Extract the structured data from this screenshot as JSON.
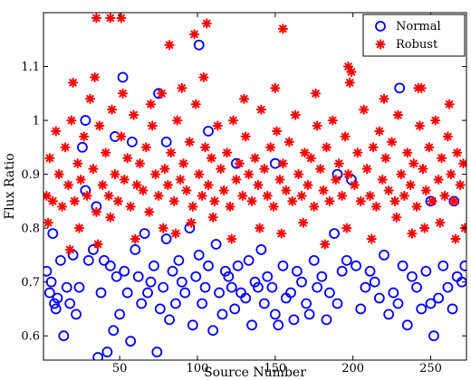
{
  "chart_data": {
    "type": "scatter",
    "title": "",
    "xlabel": "Source Number",
    "ylabel": "Flux Ratio",
    "xlim": [
      1,
      273
    ],
    "ylim": [
      0.555,
      1.2
    ],
    "xticks": [
      50,
      100,
      150,
      200,
      250
    ],
    "yticks": [
      0.6,
      0.7,
      0.8,
      0.9,
      1.0,
      1.1
    ],
    "ytick_labels": [
      "0.6",
      "0.7",
      "0.8",
      "0.9",
      "1",
      "1.1"
    ],
    "grid": false,
    "legend_position": "top-right",
    "series": [
      {
        "name": "Normal",
        "marker": "circle",
        "color": "#0000ff",
        "x": [
          3,
          5,
          6,
          7,
          8,
          9,
          10,
          12,
          14,
          16,
          18,
          20,
          22,
          24,
          26,
          28,
          30,
          33,
          35,
          36,
          38,
          40,
          42,
          44,
          46,
          48,
          50,
          53,
          55,
          57,
          60,
          62,
          64,
          66,
          68,
          70,
          72,
          74,
          76,
          78,
          80,
          82,
          84,
          86,
          88,
          90,
          92,
          95,
          97,
          99,
          101,
          103,
          105,
          107,
          110,
          112,
          114,
          116,
          118,
          120,
          122,
          124,
          126,
          128,
          131,
          133,
          135,
          137,
          139,
          141,
          143,
          145,
          148,
          150,
          152,
          155,
          157,
          160,
          162,
          164,
          167,
          170,
          172,
          175,
          177,
          180,
          183,
          185,
          188,
          190,
          193,
          196,
          199,
          202,
          205,
          208,
          211,
          214,
          217,
          220,
          223,
          226,
          229,
          232,
          235,
          238,
          241,
          244,
          247,
          250,
          252,
          255,
          258,
          261,
          264,
          267,
          270,
          272,
          28,
          47,
          52,
          58,
          75,
          80,
          101,
          107,
          125,
          150,
          190,
          230,
          250,
          265
        ],
        "y": [
          0.72,
          0.68,
          0.7,
          0.79,
          0.66,
          0.65,
          0.67,
          0.74,
          0.6,
          0.69,
          0.66,
          0.75,
          0.64,
          0.69,
          0.95,
          0.87,
          0.74,
          0.76,
          0.84,
          0.56,
          0.68,
          0.74,
          0.57,
          0.73,
          0.61,
          0.71,
          0.64,
          0.72,
          0.68,
          0.59,
          0.76,
          0.71,
          0.66,
          0.79,
          0.68,
          0.7,
          0.73,
          0.57,
          0.65,
          0.69,
          0.78,
          0.63,
          0.72,
          0.66,
          0.74,
          0.7,
          0.68,
          0.8,
          0.62,
          0.71,
          0.75,
          0.66,
          0.69,
          0.73,
          0.61,
          0.77,
          0.68,
          0.64,
          0.72,
          0.71,
          0.69,
          0.65,
          0.73,
          0.68,
          0.67,
          0.74,
          0.62,
          0.7,
          0.69,
          0.76,
          0.66,
          0.71,
          0.69,
          0.64,
          0.62,
          0.73,
          0.67,
          0.68,
          0.63,
          0.72,
          0.7,
          0.66,
          0.64,
          0.74,
          0.69,
          0.71,
          0.63,
          0.68,
          0.79,
          0.66,
          0.72,
          0.74,
          0.89,
          0.73,
          0.65,
          0.69,
          0.72,
          0.7,
          0.67,
          0.75,
          0.64,
          0.68,
          0.66,
          0.73,
          0.62,
          0.71,
          0.69,
          0.65,
          0.72,
          0.66,
          0.6,
          0.67,
          0.73,
          0.69,
          0.65,
          0.71,
          0.7,
          0.73,
          1.0,
          0.97,
          1.08,
          0.96,
          1.05,
          0.96,
          1.14,
          0.98,
          0.92,
          0.92,
          0.9,
          1.06,
          0.85,
          0.85
        ]
      },
      {
        "name": "Robust",
        "marker": "asterisk",
        "color": "#ff0000",
        "x": [
          3,
          5,
          7,
          9,
          11,
          13,
          15,
          17,
          19,
          21,
          23,
          25,
          27,
          29,
          31,
          33,
          35,
          37,
          39,
          41,
          43,
          45,
          47,
          49,
          51,
          53,
          55,
          57,
          59,
          61,
          63,
          65,
          67,
          69,
          71,
          73,
          75,
          77,
          79,
          81,
          83,
          85,
          87,
          89,
          91,
          93,
          95,
          97,
          99,
          101,
          103,
          105,
          107,
          109,
          111,
          113,
          115,
          117,
          119,
          121,
          123,
          125,
          127,
          129,
          131,
          133,
          135,
          137,
          139,
          141,
          143,
          145,
          147,
          149,
          151,
          153,
          155,
          157,
          159,
          161,
          163,
          165,
          167,
          169,
          171,
          173,
          175,
          177,
          179,
          181,
          183,
          185,
          187,
          189,
          191,
          193,
          195,
          197,
          199,
          201,
          203,
          205,
          207,
          209,
          211,
          213,
          215,
          217,
          219,
          221,
          223,
          225,
          227,
          229,
          231,
          233,
          235,
          237,
          239,
          241,
          243,
          245,
          247,
          249,
          251,
          253,
          255,
          257,
          259,
          261,
          263,
          265,
          267,
          269,
          271,
          4,
          18,
          24,
          36,
          44,
          60,
          78,
          86,
          96,
          110,
          122,
          140,
          154,
          168,
          182,
          196,
          212,
          228,
          238,
          246,
          256,
          266,
          272,
          20,
          34,
          52,
          70,
          90,
          104,
          130,
          150,
          176,
          198,
          220,
          244,
          262,
          35,
          44,
          51,
          82,
          98,
          106,
          155,
          197,
          242
        ],
        "y": [
          0.86,
          0.93,
          0.85,
          0.98,
          0.9,
          0.84,
          0.95,
          0.88,
          1.0,
          0.85,
          0.92,
          0.89,
          0.97,
          0.86,
          1.04,
          0.91,
          0.83,
          0.99,
          0.88,
          0.94,
          0.86,
          1.02,
          0.9,
          0.85,
          0.97,
          0.89,
          0.93,
          0.84,
          1.01,
          0.88,
          0.92,
          0.87,
          0.95,
          0.83,
          0.99,
          0.9,
          0.86,
          1.05,
          0.91,
          0.88,
          0.94,
          0.85,
          1.0,
          0.89,
          0.92,
          0.87,
          0.96,
          0.84,
          1.03,
          0.9,
          0.86,
          0.95,
          0.88,
          0.93,
          0.85,
          0.99,
          0.91,
          0.87,
          0.94,
          0.84,
          1.0,
          0.89,
          0.92,
          0.86,
          0.97,
          0.9,
          0.85,
          0.93,
          0.88,
          1.02,
          0.91,
          0.86,
          0.95,
          0.84,
          0.98,
          0.89,
          0.92,
          0.87,
          0.96,
          0.85,
          1.01,
          0.9,
          0.86,
          0.94,
          0.88,
          0.93,
          0.84,
          0.99,
          0.91,
          0.87,
          0.95,
          0.85,
          1.0,
          0.89,
          0.92,
          0.86,
          0.97,
          0.9,
          1.09,
          0.88,
          0.94,
          0.85,
          1.02,
          0.91,
          0.86,
          0.95,
          0.84,
          0.98,
          0.89,
          0.93,
          0.87,
          0.96,
          0.85,
          1.01,
          0.9,
          0.86,
          0.94,
          0.88,
          0.92,
          0.84,
          0.99,
          0.91,
          0.87,
          0.95,
          0.85,
          1.0,
          0.89,
          0.93,
          0.86,
          0.97,
          0.9,
          0.85,
          0.94,
          0.88,
          0.92,
          0.81,
          0.76,
          0.8,
          0.77,
          0.82,
          0.78,
          0.8,
          0.79,
          0.81,
          0.82,
          0.78,
          0.8,
          0.79,
          0.81,
          0.77,
          0.8,
          0.78,
          0.82,
          0.79,
          0.8,
          0.81,
          0.78,
          0.8,
          1.07,
          1.08,
          1.05,
          1.03,
          1.06,
          1.08,
          1.04,
          1.06,
          1.05,
          1.07,
          1.04,
          1.06,
          1.03,
          1.19,
          1.19,
          1.19,
          1.14,
          1.16,
          1.18,
          1.17,
          1.1,
          1.06
        ]
      }
    ]
  }
}
